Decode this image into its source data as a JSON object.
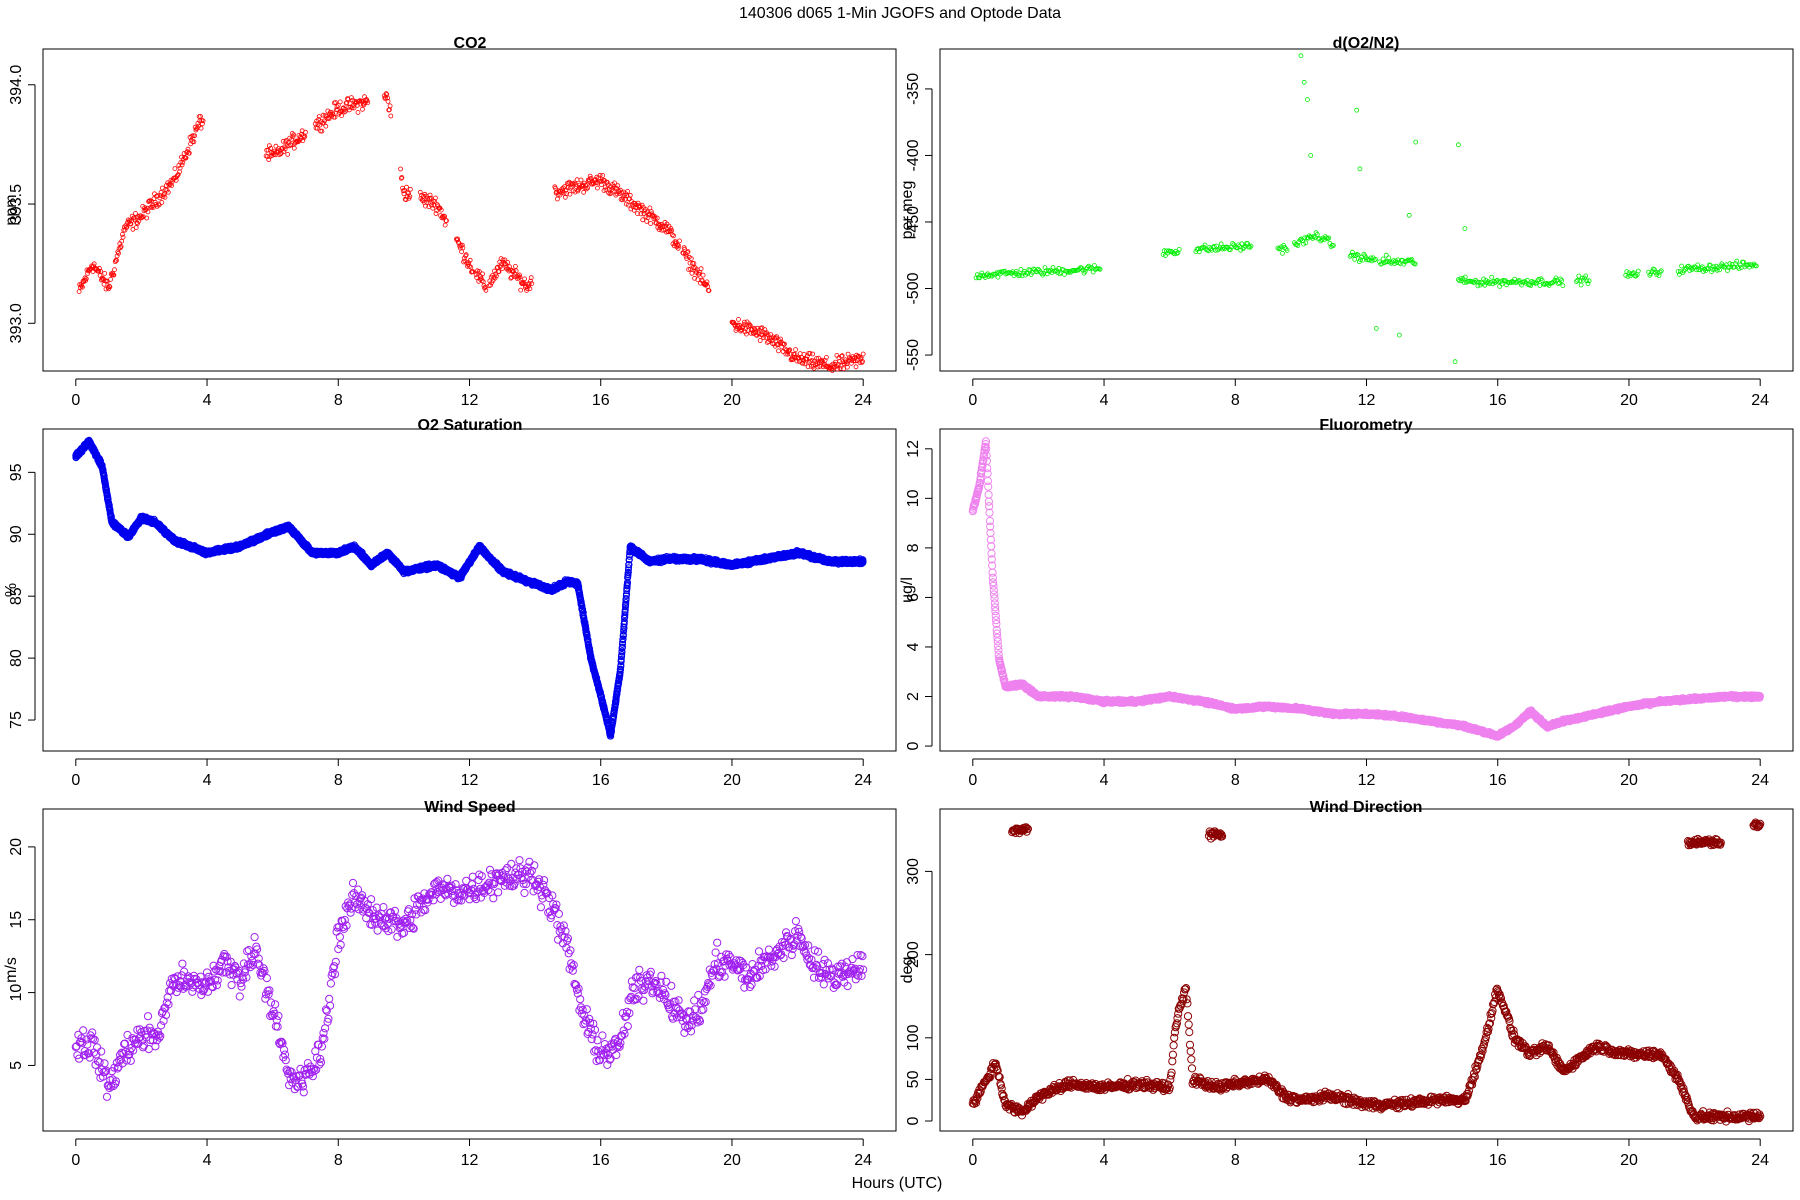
{
  "figure": {
    "title": "140306   d065   1-Min  JGOFS and Optode Data",
    "xlabel": "Hours (UTC)"
  },
  "chart_data": [
    {
      "id": "co2",
      "type": "scatter",
      "title": "CO2",
      "ylabel": "ppm",
      "color": "#ff0000",
      "xlim": [
        -1,
        25
      ],
      "ylim": [
        392.8,
        394.15
      ],
      "xticks": [
        0,
        4,
        8,
        12,
        16,
        20,
        24
      ],
      "yticks": [
        393.0,
        393.5,
        394.0
      ],
      "ytick_labels": [
        "393.0",
        "393.5",
        "394.0"
      ],
      "marker_size": "small",
      "segments": [
        [
          0.1,
          3.9
        ],
        [
          5.8,
          7.0
        ],
        [
          7.3,
          8.9
        ],
        [
          9.4,
          9.6
        ],
        [
          9.9,
          10.2
        ],
        [
          10.5,
          11.3
        ],
        [
          11.6,
          12.1
        ],
        [
          12.2,
          12.5
        ],
        [
          12.6,
          13.9
        ],
        [
          14.6,
          18.4
        ],
        [
          18.5,
          19.3
        ],
        [
          20.0,
          24.0
        ]
      ],
      "trend": [
        [
          0,
          393.1
        ],
        [
          0.5,
          393.25
        ],
        [
          1,
          393.15
        ],
        [
          1.5,
          393.4
        ],
        [
          2,
          393.45
        ],
        [
          3,
          393.6
        ],
        [
          3.8,
          393.85
        ],
        [
          6,
          393.7
        ],
        [
          7,
          393.8
        ],
        [
          8,
          393.9
        ],
        [
          9.5,
          393.95
        ],
        [
          10,
          393.55
        ],
        [
          11,
          393.5
        ],
        [
          12,
          393.25
        ],
        [
          12.5,
          393.15
        ],
        [
          13,
          393.25
        ],
        [
          13.8,
          393.15
        ],
        [
          14.6,
          393.55
        ],
        [
          16,
          393.6
        ],
        [
          17,
          393.5
        ],
        [
          18,
          393.4
        ],
        [
          19,
          393.2
        ],
        [
          20,
          393.0
        ],
        [
          21,
          392.95
        ],
        [
          22,
          392.85
        ],
        [
          23,
          392.82
        ],
        [
          24,
          392.85
        ]
      ]
    },
    {
      "id": "d_o2n2",
      "type": "scatter",
      "title": "d(O2/N2)",
      "ylabel": "per meg",
      "color": "#00ee00",
      "xlim": [
        -1,
        25
      ],
      "ylim": [
        -562,
        -320
      ],
      "xticks": [
        0,
        4,
        8,
        12,
        16,
        20,
        24
      ],
      "yticks": [
        -550,
        -500,
        -450,
        -400,
        -350
      ],
      "ytick_labels": [
        "-550",
        "-500",
        "-450",
        "-400",
        "-350"
      ],
      "marker_size": "small",
      "segments": [
        [
          0.1,
          3.9
        ],
        [
          5.8,
          6.3
        ],
        [
          6.8,
          8.5
        ],
        [
          9.3,
          9.6
        ],
        [
          9.8,
          11.0
        ],
        [
          11.5,
          12.3
        ],
        [
          12.4,
          13.5
        ],
        [
          14.8,
          18.0
        ],
        [
          18.4,
          18.8
        ],
        [
          19.9,
          20.3
        ],
        [
          20.6,
          21.0
        ],
        [
          21.5,
          23.9
        ]
      ],
      "trend": [
        [
          0,
          -490
        ],
        [
          4,
          -485
        ],
        [
          6,
          -472
        ],
        [
          8.5,
          -468
        ],
        [
          9.5,
          -470
        ],
        [
          10.5,
          -460
        ],
        [
          11.5,
          -475
        ],
        [
          12.5,
          -480
        ],
        [
          13.5,
          -480
        ],
        [
          15,
          -495
        ],
        [
          18,
          -495
        ],
        [
          20,
          -490
        ],
        [
          22,
          -485
        ],
        [
          24,
          -482
        ]
      ],
      "outliers": [
        [
          10.0,
          -325
        ],
        [
          10.1,
          -345
        ],
        [
          10.2,
          -358
        ],
        [
          10.3,
          -400
        ],
        [
          11.7,
          -366
        ],
        [
          11.8,
          -410
        ],
        [
          12.3,
          -530
        ],
        [
          12.6,
          -475
        ],
        [
          13.0,
          -535
        ],
        [
          13.3,
          -445
        ],
        [
          13.5,
          -390
        ],
        [
          14.7,
          -555
        ],
        [
          14.8,
          -392
        ],
        [
          15.0,
          -455
        ]
      ]
    },
    {
      "id": "o2sat",
      "type": "scatter",
      "title": "O2 Saturation",
      "ylabel": "%",
      "color": "#0000ee",
      "xlim": [
        -1,
        25
      ],
      "ylim": [
        72.5,
        98.5
      ],
      "xticks": [
        0,
        4,
        8,
        12,
        16,
        20,
        24
      ],
      "yticks": [
        75,
        80,
        85,
        90,
        95
      ],
      "ytick_labels": [
        "75",
        "80",
        "85",
        "90",
        "95"
      ],
      "marker_size": "dense",
      "segments": [
        [
          0,
          24
        ]
      ],
      "trend": [
        [
          0,
          96.3
        ],
        [
          0.4,
          97.5
        ],
        [
          0.8,
          95.5
        ],
        [
          1.1,
          91
        ],
        [
          1.6,
          89.8
        ],
        [
          2.0,
          91.3
        ],
        [
          2.4,
          91.0
        ],
        [
          3,
          89.5
        ],
        [
          4,
          88.5
        ],
        [
          5,
          89
        ],
        [
          6,
          90.2
        ],
        [
          6.5,
          90.6
        ],
        [
          7.2,
          88.5
        ],
        [
          8,
          88.5
        ],
        [
          8.5,
          89
        ],
        [
          9,
          87.5
        ],
        [
          9.5,
          88.5
        ],
        [
          10,
          87
        ],
        [
          11,
          87.5
        ],
        [
          11.7,
          86.5
        ],
        [
          12.3,
          89
        ],
        [
          13,
          87
        ],
        [
          14,
          86
        ],
        [
          14.5,
          85.5
        ],
        [
          15,
          86.2
        ],
        [
          15.3,
          86
        ],
        [
          15.7,
          80
        ],
        [
          16,
          77
        ],
        [
          16.3,
          73.8
        ],
        [
          16.6,
          79
        ],
        [
          16.9,
          89
        ],
        [
          17.5,
          87.8
        ],
        [
          18,
          88
        ],
        [
          19,
          88
        ],
        [
          20,
          87.5
        ],
        [
          21,
          88
        ],
        [
          22,
          88.5
        ],
        [
          23,
          87.8
        ],
        [
          24,
          87.8
        ]
      ]
    },
    {
      "id": "fluor",
      "type": "scatter",
      "title": "Fluorometry",
      "ylabel": "ug/l",
      "color": "#ee82ee",
      "xlim": [
        -1,
        25
      ],
      "ylim": [
        -0.2,
        12.8
      ],
      "xticks": [
        0,
        4,
        8,
        12,
        16,
        20,
        24
      ],
      "yticks": [
        0,
        2,
        4,
        6,
        8,
        10,
        12
      ],
      "ytick_labels": [
        "0",
        "2",
        "4",
        "6",
        "8",
        "10",
        "12"
      ],
      "marker_size": "large",
      "segments": [
        [
          0,
          24
        ]
      ],
      "trend": [
        [
          0,
          9.5
        ],
        [
          0.2,
          10.5
        ],
        [
          0.4,
          12.3
        ],
        [
          0.6,
          7
        ],
        [
          0.8,
          3.5
        ],
        [
          1.0,
          2.4
        ],
        [
          1.5,
          2.5
        ],
        [
          2,
          2.0
        ],
        [
          3,
          2.0
        ],
        [
          4,
          1.8
        ],
        [
          5,
          1.8
        ],
        [
          6,
          2.0
        ],
        [
          7,
          1.8
        ],
        [
          8,
          1.5
        ],
        [
          9,
          1.6
        ],
        [
          10,
          1.5
        ],
        [
          11,
          1.3
        ],
        [
          12,
          1.3
        ],
        [
          13,
          1.2
        ],
        [
          14,
          1.0
        ],
        [
          15,
          0.8
        ],
        [
          16,
          0.4
        ],
        [
          16.5,
          0.8
        ],
        [
          17,
          1.4
        ],
        [
          17.5,
          0.8
        ],
        [
          18,
          1.0
        ],
        [
          19,
          1.3
        ],
        [
          20,
          1.6
        ],
        [
          21,
          1.8
        ],
        [
          22,
          1.9
        ],
        [
          23,
          2.0
        ],
        [
          24,
          2.0
        ]
      ]
    },
    {
      "id": "windspeed",
      "type": "scatter",
      "title": "Wind Speed",
      "ylabel": "m/s",
      "color": "#a020f0",
      "xlim": [
        -1,
        25
      ],
      "ylim": [
        0.5,
        22.6
      ],
      "xticks": [
        0,
        4,
        8,
        12,
        16,
        20,
        24
      ],
      "yticks": [
        5,
        10,
        15,
        20
      ],
      "ytick_labels": [
        "5",
        "10",
        "15",
        "20"
      ],
      "marker_size": "large",
      "segments": [
        [
          0,
          24
        ]
      ],
      "trend": [
        [
          0,
          6.5
        ],
        [
          0.5,
          6.5
        ],
        [
          1,
          3.5
        ],
        [
          1.5,
          6
        ],
        [
          2,
          7
        ],
        [
          2.5,
          7
        ],
        [
          3,
          11
        ],
        [
          3.5,
          10.5
        ],
        [
          4,
          10.5
        ],
        [
          4.5,
          12
        ],
        [
          5,
          11
        ],
        [
          5.5,
          13
        ],
        [
          6,
          9
        ],
        [
          6.5,
          4
        ],
        [
          7,
          4
        ],
        [
          7.5,
          6
        ],
        [
          8,
          14
        ],
        [
          8.5,
          16.5
        ],
        [
          9,
          15.5
        ],
        [
          10,
          14.5
        ],
        [
          10.5,
          16
        ],
        [
          11,
          17
        ],
        [
          12,
          17
        ],
        [
          13,
          18
        ],
        [
          14,
          18
        ],
        [
          14.5,
          16
        ],
        [
          15,
          13
        ],
        [
          15.5,
          8
        ],
        [
          16,
          6
        ],
        [
          16.5,
          6
        ],
        [
          17,
          10
        ],
        [
          17.5,
          11
        ],
        [
          18,
          10
        ],
        [
          18.5,
          8
        ],
        [
          19,
          8.5
        ],
        [
          19.5,
          12
        ],
        [
          20,
          12
        ],
        [
          20.5,
          11
        ],
        [
          21,
          12
        ],
        [
          22,
          14
        ],
        [
          22.5,
          12
        ],
        [
          23,
          11
        ],
        [
          24,
          12
        ]
      ]
    },
    {
      "id": "winddir",
      "type": "scatter",
      "title": "Wind Direction",
      "ylabel": "deg",
      "color": "#8b0000",
      "xlim": [
        -1,
        25
      ],
      "ylim": [
        -12,
        375
      ],
      "xticks": [
        0,
        4,
        8,
        12,
        16,
        20,
        24
      ],
      "yticks": [
        0,
        50,
        100,
        200,
        300
      ],
      "ytick_labels": [
        "0",
        "50",
        "100",
        "200",
        "300"
      ],
      "marker_size": "large",
      "segments": [
        [
          0,
          24
        ]
      ],
      "trend": [
        [
          0,
          20
        ],
        [
          0.7,
          70
        ],
        [
          1.0,
          20
        ],
        [
          1.5,
          10
        ],
        [
          2,
          30
        ],
        [
          3,
          45
        ],
        [
          4,
          40
        ],
        [
          5,
          45
        ],
        [
          6,
          40
        ],
        [
          6.2,
          120
        ],
        [
          6.5,
          160
        ],
        [
          6.7,
          50
        ],
        [
          7.5,
          40
        ],
        [
          8,
          45
        ],
        [
          9,
          50
        ],
        [
          9.5,
          30
        ],
        [
          10,
          25
        ],
        [
          11,
          30
        ],
        [
          12,
          20
        ],
        [
          13,
          20
        ],
        [
          14,
          25
        ],
        [
          15,
          25
        ],
        [
          15.5,
          80
        ],
        [
          16,
          160
        ],
        [
          16.5,
          100
        ],
        [
          17,
          80
        ],
        [
          17.5,
          90
        ],
        [
          18,
          60
        ],
        [
          19,
          90
        ],
        [
          20,
          80
        ],
        [
          21,
          80
        ],
        [
          21.5,
          50
        ],
        [
          22,
          5
        ],
        [
          23,
          5
        ],
        [
          24,
          5
        ]
      ],
      "clusters": [
        [
          1.2,
          1.7,
          350
        ],
        [
          7.2,
          7.6,
          345
        ],
        [
          21.8,
          22.8,
          335
        ],
        [
          23.8,
          24.0,
          355
        ]
      ]
    }
  ]
}
